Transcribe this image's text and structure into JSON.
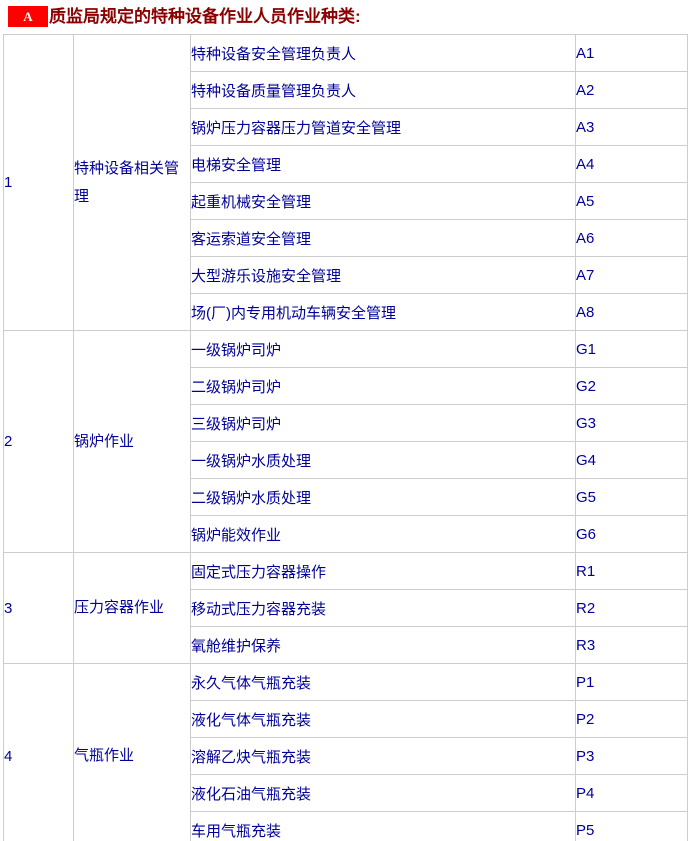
{
  "header": {
    "badge": "A",
    "title": "质监局规定的特种设备作业人员作业种类:"
  },
  "table": {
    "sections": [
      {
        "number": "1",
        "category": "特种设备相关管理",
        "items": [
          {
            "label": "特种设备安全管理负责人",
            "code": "A1"
          },
          {
            "label": "特种设备质量管理负责人",
            "code": "A2"
          },
          {
            "label": "锅炉压力容器压力管道安全管理",
            "code": "A3"
          },
          {
            "label": "电梯安全管理",
            "code": "A4"
          },
          {
            "label": "起重机械安全管理",
            "code": "A5"
          },
          {
            "label": "客运索道安全管理",
            "code": "A6"
          },
          {
            "label": "大型游乐设施安全管理",
            "code": "A7"
          },
          {
            "label": "场(厂)内专用机动车辆安全管理",
            "code": "A8"
          }
        ]
      },
      {
        "number": "2",
        "category": "锅炉作业",
        "items": [
          {
            "label": "一级锅炉司炉",
            "code": "G1"
          },
          {
            "label": "二级锅炉司炉",
            "code": "G2"
          },
          {
            "label": "三级锅炉司炉",
            "code": "G3"
          },
          {
            "label": "一级锅炉水质处理",
            "code": "G4"
          },
          {
            "label": "二级锅炉水质处理",
            "code": "G5"
          },
          {
            "label": "锅炉能效作业",
            "code": "G6"
          }
        ]
      },
      {
        "number": "3",
        "category": "压力容器作业",
        "items": [
          {
            "label": "固定式压力容器操作",
            "code": "R1"
          },
          {
            "label": "移动式压力容器充装",
            "code": "R2"
          },
          {
            "label": "氧舱维护保养",
            "code": "R3"
          }
        ]
      },
      {
        "number": "4",
        "category": "气瓶作业",
        "items": [
          {
            "label": "永久气体气瓶充装",
            "code": "P1"
          },
          {
            "label": "液化气体气瓶充装",
            "code": "P2"
          },
          {
            "label": "溶解乙炔气瓶充装",
            "code": "P3"
          },
          {
            "label": "液化石油气瓶充装",
            "code": "P4"
          },
          {
            "label": "车用气瓶充装",
            "code": "P5"
          }
        ]
      }
    ]
  },
  "colors": {
    "badge_bg": "#fe0000",
    "badge_text": "#ffffff",
    "title_text": "#8b0000",
    "cell_text": "#000099",
    "border": "#cccccc"
  }
}
